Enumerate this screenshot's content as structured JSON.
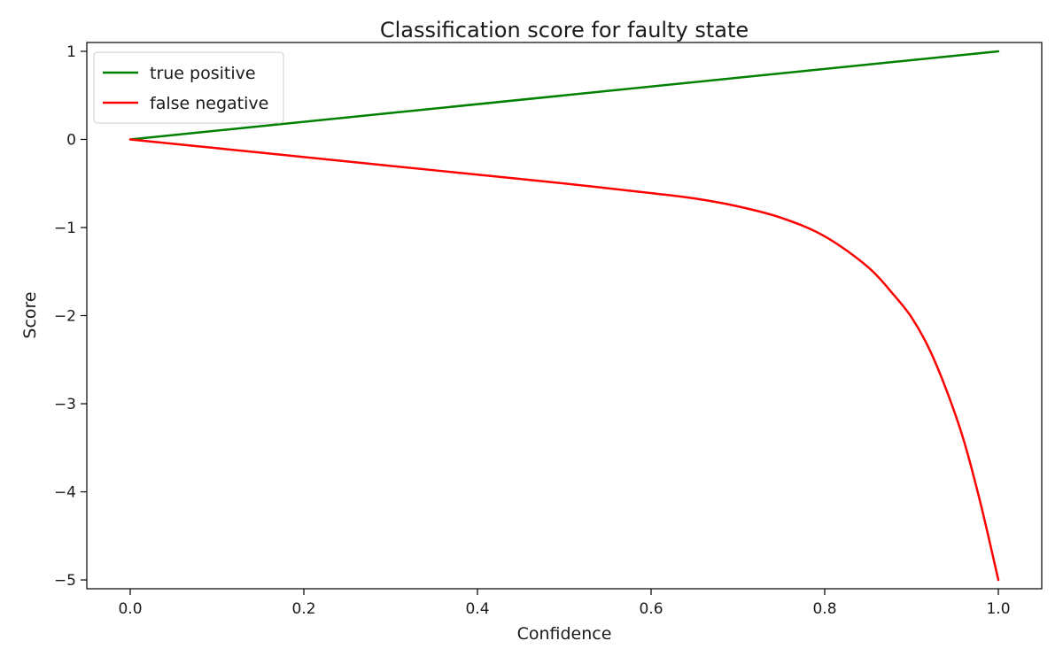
{
  "chart_data": {
    "type": "line",
    "title": "Classification score for faulty state",
    "xlabel": "Confidence",
    "ylabel": "Score",
    "xlim": [
      -0.05,
      1.05
    ],
    "ylim": [
      -5.1,
      1.1
    ],
    "xticks": [
      0.0,
      0.2,
      0.4,
      0.6,
      0.8,
      1.0
    ],
    "xtick_labels": [
      "0.0",
      "0.2",
      "0.4",
      "0.6",
      "0.8",
      "1.0"
    ],
    "yticks": [
      -5,
      -4,
      -3,
      -2,
      -1,
      0,
      1
    ],
    "ytick_labels": [
      "−5",
      "−4",
      "−3",
      "−2",
      "−1",
      "0",
      "1"
    ],
    "grid": false,
    "legend_position": "top-left",
    "series": [
      {
        "name": "true positive",
        "color": "#008000",
        "x": [
          0.0,
          1.0
        ],
        "y": [
          0.0,
          1.0
        ]
      },
      {
        "name": "false negative",
        "color": "#ff0000",
        "x": [
          0.0,
          0.1,
          0.2,
          0.3,
          0.4,
          0.5,
          0.6,
          0.65,
          0.7,
          0.75,
          0.8,
          0.85,
          0.88,
          0.9,
          0.92,
          0.94,
          0.96,
          0.98,
          1.0
        ],
        "y": [
          0.0,
          -0.1,
          -0.2,
          -0.3,
          -0.4,
          -0.5,
          -0.61,
          -0.67,
          -0.76,
          -0.89,
          -1.1,
          -1.45,
          -1.77,
          -2.02,
          -2.37,
          -2.84,
          -3.41,
          -4.15,
          -5.0
        ]
      }
    ]
  }
}
